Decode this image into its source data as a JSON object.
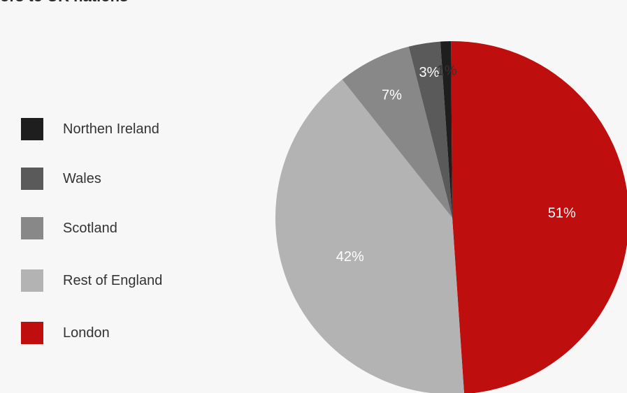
{
  "chart_data": {
    "type": "pie",
    "title": "ors to UK nations",
    "slices": [
      {
        "name": "London",
        "value": 51,
        "label": "51%",
        "color": "#bf0e0e",
        "label_color": "#ffffff"
      },
      {
        "name": "Rest of England",
        "value": 42,
        "label": "42%",
        "color": "#b3b3b3",
        "label_color": "#ffffff"
      },
      {
        "name": "Scotland",
        "value": 7,
        "label": "7%",
        "color": "#888888",
        "label_color": "#ffffff"
      },
      {
        "name": "Wales",
        "value": 3,
        "label": "3%",
        "color": "#5a5a5a",
        "label_color": "#ffffff"
      },
      {
        "name": "Northen Ireland",
        "value": 1,
        "label": "1%",
        "color": "#1e1e1e",
        "label_color": "#333333"
      }
    ],
    "legend": [
      {
        "name": "Northen Ireland",
        "color": "#1e1e1e"
      },
      {
        "name": "Wales",
        "color": "#5a5a5a"
      },
      {
        "name": "Scotland",
        "color": "#888888"
      },
      {
        "name": "Rest of England",
        "color": "#b3b3b3"
      },
      {
        "name": "London",
        "color": "#bf0e0e"
      }
    ],
    "legend_placement": "left"
  }
}
